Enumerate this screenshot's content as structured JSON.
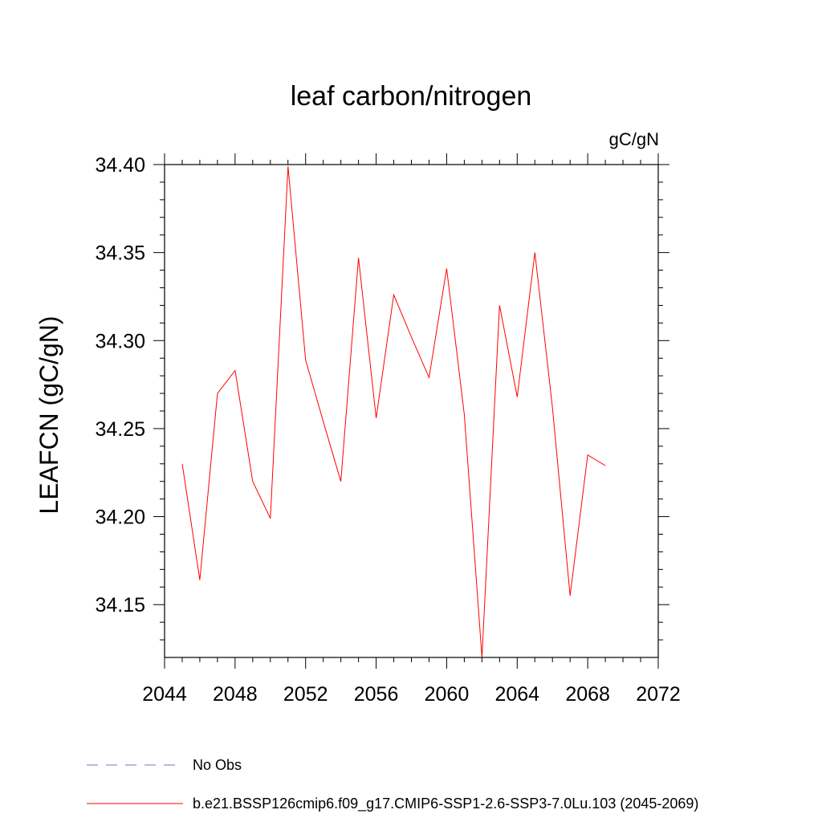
{
  "chart_data": {
    "type": "line",
    "title": "leaf carbon/nitrogen",
    "units": "gC/gN",
    "ylabel": "LEAFCN  (gC/gN)",
    "xlabel": "",
    "xlim": [
      2044,
      2072
    ],
    "ylim": [
      34.12,
      34.4
    ],
    "x_ticks": [
      2044,
      2048,
      2052,
      2056,
      2060,
      2064,
      2068,
      2072
    ],
    "x_tick_labels": [
      "2044",
      "2048",
      "2052",
      "2056",
      "2060",
      "2064",
      "2068",
      "2072"
    ],
    "y_ticks": [
      34.15,
      34.2,
      34.25,
      34.3,
      34.35,
      34.4
    ],
    "y_tick_labels": [
      "34.15",
      "34.20",
      "34.25",
      "34.30",
      "34.35",
      "34.40"
    ],
    "grid": false,
    "legend_position": "bottom",
    "series": [
      {
        "name": "b.e21.BSSP126cmip6.f09_g17.CMIP6-SSP1-2.6-SSP3-7.0Lu.103 (2045-2069)",
        "color": "#ff0000",
        "style": "solid",
        "x": [
          2045,
          2046,
          2047,
          2048,
          2049,
          2050,
          2051,
          2052,
          2053,
          2054,
          2055,
          2056,
          2057,
          2058,
          2059,
          2060,
          2061,
          2062,
          2063,
          2064,
          2065,
          2066,
          2067,
          2068,
          2069
        ],
        "y": [
          34.23,
          34.164,
          34.27,
          34.283,
          34.22,
          34.199,
          34.399,
          34.289,
          34.254,
          34.22,
          34.347,
          34.256,
          34.326,
          34.302,
          34.279,
          34.341,
          34.258,
          34.12,
          34.32,
          34.268,
          34.35,
          34.262,
          34.155,
          34.235,
          34.229
        ]
      },
      {
        "name": "No Obs",
        "color": "#7b6fb0",
        "style": "dashed",
        "x": [],
        "y": []
      }
    ]
  }
}
